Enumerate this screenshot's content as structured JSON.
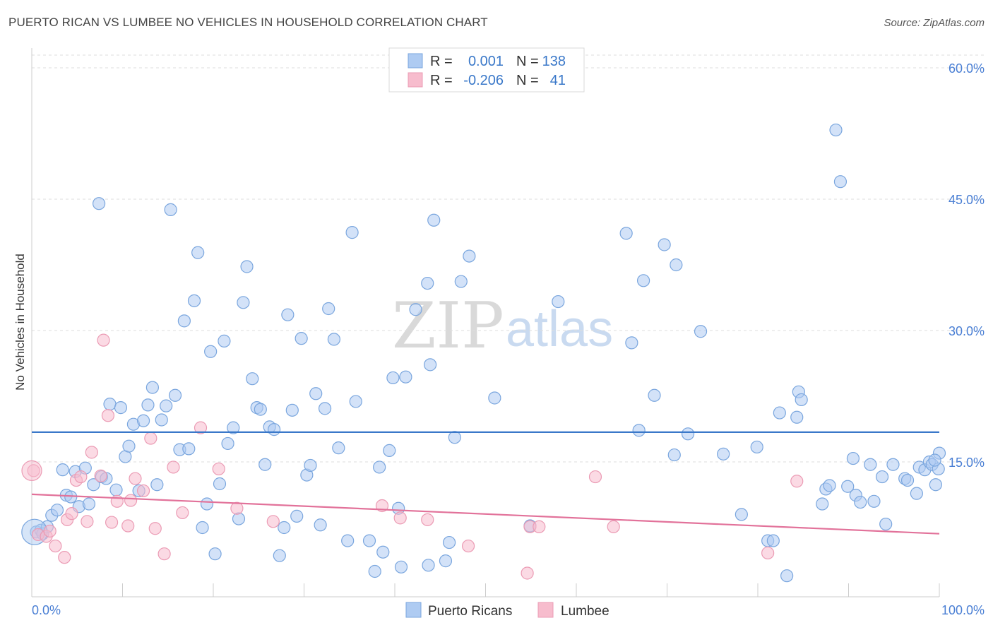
{
  "title": "PUERTO RICAN VS LUMBEE NO VEHICLES IN HOUSEHOLD CORRELATION CHART",
  "source": "Source: ZipAtlas.com",
  "watermark": {
    "zip": "ZIP",
    "atlas": "atlas"
  },
  "colors": {
    "blue_fill": "#aecbf2",
    "blue_stroke": "#7aa6de",
    "blue_line": "#3a78c9",
    "pink_fill": "#f7bccd",
    "pink_stroke": "#eb9bb4",
    "pink_line": "#e2729a",
    "tick_text": "#4a7fd4",
    "grid": "#dddddd"
  },
  "legend": {
    "r_label": "R =",
    "n_label": "N =",
    "rows": [
      {
        "series": "Puerto Ricans",
        "r": "0.001",
        "n": "138"
      },
      {
        "series": "Lumbee",
        "r": "-0.206",
        "n": "41"
      }
    ]
  },
  "chart_data": {
    "type": "scatter",
    "title": "PUERTO RICAN VS LUMBEE NO VEHICLES IN HOUSEHOLD CORRELATION CHART",
    "xlabel": "",
    "ylabel": "No Vehicles in Household",
    "xlim": [
      0,
      100
    ],
    "ylim": [
      0,
      62
    ],
    "x_tick_labels": [
      "0.0%",
      "100.0%"
    ],
    "y_ticks": [
      15,
      30,
      45,
      60
    ],
    "y_tick_labels": [
      "15.0%",
      "30.0%",
      "45.0%",
      "60.0%"
    ],
    "legend_position": "top-center",
    "series": [
      {
        "name": "Puerto Ricans",
        "trend": {
          "x": [
            0,
            100
          ],
          "y": [
            18.4,
            18.4
          ]
        },
        "points": [
          [
            0.5,
            7.0
          ],
          [
            1,
            7.2
          ],
          [
            1.2,
            6.8
          ],
          [
            1.7,
            7.6
          ],
          [
            2.2,
            8.9
          ],
          [
            2.8,
            9.5
          ],
          [
            3.4,
            14.1
          ],
          [
            3.8,
            11.2
          ],
          [
            4.3,
            11.0
          ],
          [
            4.8,
            13.9
          ],
          [
            5.2,
            9.9
          ],
          [
            5.9,
            14.3
          ],
          [
            6.3,
            10.2
          ],
          [
            6.8,
            12.4
          ],
          [
            7.4,
            44.5
          ],
          [
            7.7,
            13.3
          ],
          [
            8.2,
            13.1
          ],
          [
            8.6,
            21.6
          ],
          [
            9.3,
            11.8
          ],
          [
            9.8,
            21.2
          ],
          [
            10.3,
            15.6
          ],
          [
            10.7,
            16.8
          ],
          [
            11.2,
            19.3
          ],
          [
            11.8,
            11.7
          ],
          [
            12.3,
            19.7
          ],
          [
            12.8,
            21.5
          ],
          [
            13.3,
            23.5
          ],
          [
            13.8,
            12.4
          ],
          [
            14.3,
            19.8
          ],
          [
            14.8,
            21.4
          ],
          [
            15.3,
            43.8
          ],
          [
            15.8,
            22.6
          ],
          [
            16.3,
            16.4
          ],
          [
            16.8,
            31.1
          ],
          [
            17.3,
            16.5
          ],
          [
            17.9,
            33.4
          ],
          [
            18.3,
            38.9
          ],
          [
            18.8,
            7.5
          ],
          [
            19.3,
            10.2
          ],
          [
            19.7,
            27.6
          ],
          [
            20.2,
            4.5
          ],
          [
            20.7,
            12.5
          ],
          [
            21.2,
            28.8
          ],
          [
            21.6,
            17.1
          ],
          [
            22.2,
            18.9
          ],
          [
            22.8,
            8.5
          ],
          [
            23.3,
            33.2
          ],
          [
            23.7,
            37.3
          ],
          [
            24.3,
            24.5
          ],
          [
            24.8,
            21.2
          ],
          [
            25.2,
            21.0
          ],
          [
            25.7,
            14.7
          ],
          [
            26.2,
            19.0
          ],
          [
            26.7,
            18.7
          ],
          [
            27.3,
            4.3
          ],
          [
            27.8,
            7.5
          ],
          [
            28.2,
            31.8
          ],
          [
            28.7,
            20.9
          ],
          [
            29.2,
            8.8
          ],
          [
            29.7,
            29.1
          ],
          [
            30.3,
            13.5
          ],
          [
            30.7,
            14.6
          ],
          [
            31.3,
            22.8
          ],
          [
            31.8,
            7.8
          ],
          [
            32.3,
            21.1
          ],
          [
            32.7,
            32.5
          ],
          [
            33.3,
            29.0
          ],
          [
            33.8,
            16.6
          ],
          [
            34.8,
            6.0
          ],
          [
            35.3,
            41.2
          ],
          [
            35.7,
            21.9
          ],
          [
            37.2,
            6.0
          ],
          [
            37.8,
            2.5
          ],
          [
            38.3,
            14.4
          ],
          [
            38.7,
            4.7
          ],
          [
            39.4,
            16.3
          ],
          [
            39.8,
            24.6
          ],
          [
            40.4,
            9.7
          ],
          [
            40.7,
            3.0
          ],
          [
            41.2,
            24.7
          ],
          [
            42.3,
            32.4
          ],
          [
            43.7,
            3.2
          ],
          [
            43.6,
            35.4
          ],
          [
            43.9,
            26.1
          ],
          [
            44.3,
            42.6
          ],
          [
            45.6,
            3.7
          ],
          [
            46.0,
            5.8
          ],
          [
            46.6,
            17.8
          ],
          [
            47.3,
            35.6
          ],
          [
            48.2,
            38.5
          ],
          [
            51.0,
            22.3
          ],
          [
            54.9,
            7.7
          ],
          [
            58.0,
            33.3
          ],
          [
            65.5,
            41.1
          ],
          [
            66.1,
            28.6
          ],
          [
            66.9,
            18.6
          ],
          [
            67.4,
            35.7
          ],
          [
            68.6,
            22.6
          ],
          [
            69.7,
            39.8
          ],
          [
            70.8,
            15.8
          ],
          [
            71.0,
            37.5
          ],
          [
            72.3,
            18.2
          ],
          [
            73.7,
            29.9
          ],
          [
            76.2,
            15.9
          ],
          [
            78.2,
            9.0
          ],
          [
            79.9,
            16.7
          ],
          [
            81.1,
            6.0
          ],
          [
            81.7,
            6.0
          ],
          [
            82.4,
            20.6
          ],
          [
            83.2,
            2.0
          ],
          [
            84.3,
            20.1
          ],
          [
            84.5,
            23.0
          ],
          [
            84.8,
            22.1
          ],
          [
            87.1,
            10.2
          ],
          [
            87.5,
            11.9
          ],
          [
            87.9,
            12.3
          ],
          [
            88.6,
            52.9
          ],
          [
            89.1,
            47.0
          ],
          [
            89.9,
            12.2
          ],
          [
            90.5,
            15.4
          ],
          [
            90.8,
            11.2
          ],
          [
            91.3,
            10.4
          ],
          [
            92.4,
            14.7
          ],
          [
            92.8,
            10.5
          ],
          [
            93.7,
            13.3
          ],
          [
            94.1,
            7.9
          ],
          [
            94.9,
            14.7
          ],
          [
            96.2,
            13.1
          ],
          [
            96.5,
            12.9
          ],
          [
            97.5,
            11.4
          ],
          [
            97.8,
            14.4
          ],
          [
            98.4,
            14.1
          ],
          [
            98.9,
            15.0
          ],
          [
            99.2,
            14.7
          ],
          [
            99.6,
            12.4
          ],
          [
            99.9,
            14.2
          ],
          [
            100.0,
            16.0
          ],
          [
            99.5,
            15.2
          ]
        ]
      },
      {
        "name": "Lumbee",
        "trend": {
          "x": [
            0,
            100
          ],
          "y": [
            11.3,
            6.8
          ]
        },
        "points": [
          [
            0.2,
            14.0
          ],
          [
            0.7,
            6.7
          ],
          [
            1.6,
            6.5
          ],
          [
            2.0,
            7.1
          ],
          [
            2.6,
            5.4
          ],
          [
            3.6,
            4.1
          ],
          [
            3.9,
            8.4
          ],
          [
            4.4,
            9.1
          ],
          [
            4.9,
            12.9
          ],
          [
            5.4,
            13.3
          ],
          [
            6.1,
            8.2
          ],
          [
            6.6,
            16.1
          ],
          [
            7.6,
            13.4
          ],
          [
            7.9,
            28.9
          ],
          [
            8.4,
            20.3
          ],
          [
            8.8,
            8.1
          ],
          [
            9.4,
            10.5
          ],
          [
            10.6,
            7.7
          ],
          [
            10.9,
            10.6
          ],
          [
            11.4,
            13.1
          ],
          [
            12.3,
            11.7
          ],
          [
            13.1,
            17.7
          ],
          [
            13.6,
            7.4
          ],
          [
            14.6,
            4.5
          ],
          [
            15.6,
            14.4
          ],
          [
            16.6,
            9.2
          ],
          [
            18.6,
            18.9
          ],
          [
            20.6,
            14.2
          ],
          [
            22.6,
            9.7
          ],
          [
            26.6,
            8.2
          ],
          [
            38.6,
            10.0
          ],
          [
            40.6,
            8.6
          ],
          [
            43.6,
            8.4
          ],
          [
            48.1,
            5.4
          ],
          [
            54.6,
            2.3
          ],
          [
            54.9,
            7.6
          ],
          [
            55.9,
            7.6
          ],
          [
            62.1,
            13.3
          ],
          [
            64.1,
            7.6
          ],
          [
            81.1,
            4.6
          ],
          [
            84.3,
            12.8
          ]
        ]
      }
    ]
  },
  "bottom_legend": [
    "Puerto Ricans",
    "Lumbee"
  ]
}
